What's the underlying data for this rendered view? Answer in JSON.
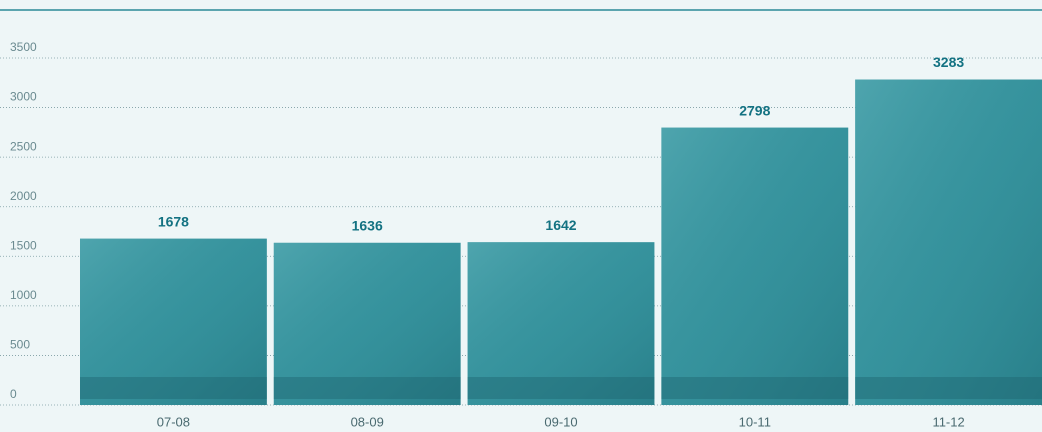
{
  "chart_data": {
    "type": "bar",
    "categories": [
      "07-08",
      "08-09",
      "09-10",
      "10-11",
      "11-12"
    ],
    "values": [
      1678,
      1636,
      1642,
      2798,
      3283
    ],
    "color": "#3a97a1",
    "ylim": [
      0,
      3500
    ],
    "yticks": [
      0,
      500,
      1000,
      1500,
      2000,
      2500,
      3000,
      3500
    ],
    "grid": true
  }
}
